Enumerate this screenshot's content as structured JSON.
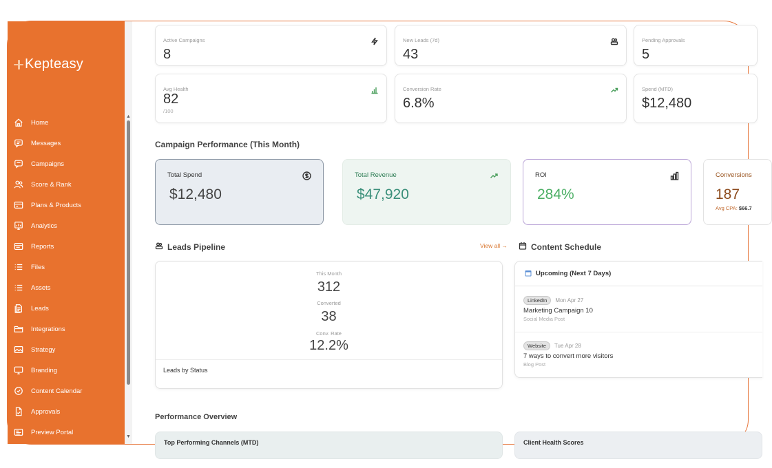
{
  "brand": {
    "name": "Kepteasy"
  },
  "nav": [
    {
      "label": "Home",
      "icon": "home-icon"
    },
    {
      "label": "Messages",
      "icon": "message-icon"
    },
    {
      "label": "Campaigns",
      "icon": "campaign-icon"
    },
    {
      "label": "Score & Rank",
      "icon": "users-icon"
    },
    {
      "label": "Plans & Products",
      "icon": "card-icon"
    },
    {
      "label": "Analytics",
      "icon": "analytics-icon"
    },
    {
      "label": "Reports",
      "icon": "report-icon"
    },
    {
      "label": "Files",
      "icon": "list-icon"
    },
    {
      "label": "Assets",
      "icon": "list-icon"
    },
    {
      "label": "Leads",
      "icon": "document-icon"
    },
    {
      "label": "Integrations",
      "icon": "folder-icon"
    },
    {
      "label": "Strategy",
      "icon": "image-icon"
    },
    {
      "label": "Branding",
      "icon": "monitor-icon"
    },
    {
      "label": "Content Calendar",
      "icon": "check-circle-icon"
    },
    {
      "label": "Approvals",
      "icon": "file-icon"
    },
    {
      "label": "Preview Portal",
      "icon": "portal-icon"
    }
  ],
  "stats": {
    "active_campaigns": {
      "label": "Active Campaigns",
      "value": "8"
    },
    "new_leads": {
      "label": "New Leads (7d)",
      "value": "43"
    },
    "pending_approvals": {
      "label": "Pending Approvals",
      "value": "5"
    },
    "avg_health": {
      "label": "Avg Health",
      "value": "82",
      "sub": "/100"
    },
    "conversion_rate": {
      "label": "Conversion Rate",
      "value": "6.8%"
    },
    "spend_mtd": {
      "label": "Spend (MTD)",
      "value": "$12,480"
    }
  },
  "campaign_performance": {
    "title": "Campaign Performance (This Month)",
    "total_spend": {
      "label": "Total Spend",
      "value": "$12,480"
    },
    "total_revenue": {
      "label": "Total Revenue",
      "value": "$47,920"
    },
    "roi": {
      "label": "ROI",
      "value": "284%"
    },
    "conversions": {
      "label": "Conversions",
      "value": "187",
      "sub_label": "Avg CPA:",
      "sub_value": "$66.7"
    }
  },
  "leads_pipeline": {
    "title": "Leads Pipeline",
    "view_all": "View all →",
    "this_month_label": "This Month",
    "this_month_value": "312",
    "converted_label": "Converted",
    "converted_value": "38",
    "conv_rate_label": "Conv. Rate",
    "conv_rate_value": "12.2%",
    "by_status": "Leads by Status"
  },
  "content_schedule": {
    "title": "Content Schedule",
    "upcoming": "Upcoming (Next 7 Days)",
    "items": [
      {
        "channel": "LinkedIn",
        "date": "Mon Apr 27",
        "title": "Marketing Campaign 10",
        "type": "Social Media Post"
      },
      {
        "channel": "Website",
        "date": "Tue Apr 28",
        "title": "7 ways to convert more visitors",
        "type": "Blog Post"
      }
    ]
  },
  "performance_overview": {
    "title": "Performance Overview",
    "top_channels": "Top Performing Channels (MTD)",
    "client_health": "Client Health Scores"
  }
}
